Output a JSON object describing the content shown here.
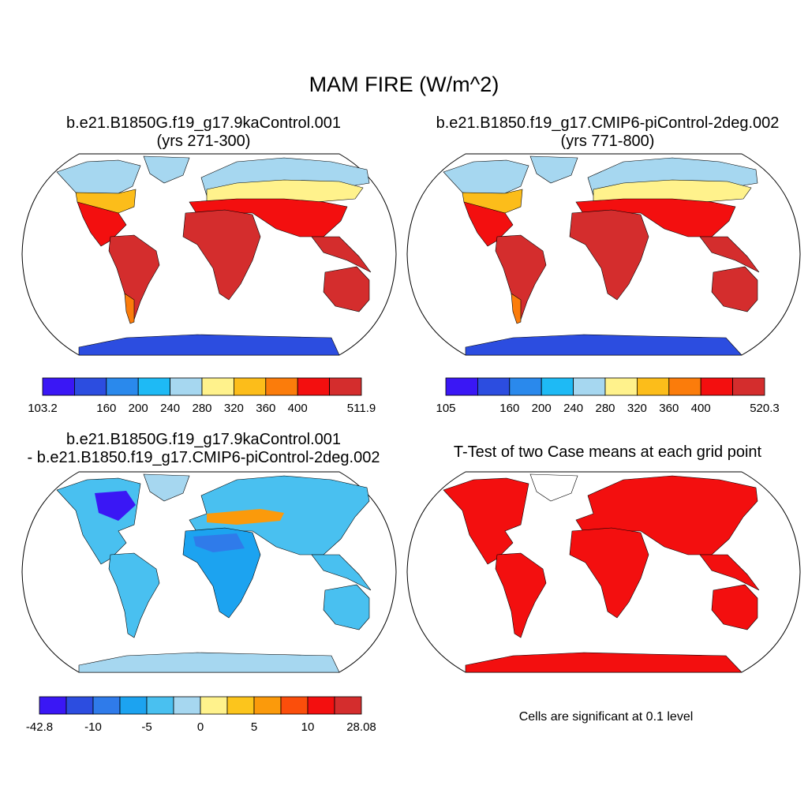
{
  "figure": {
    "title": "MAM FIRE (W/m^2)",
    "note": "Cells are significant at 0.1 level"
  },
  "panels": [
    {
      "id": "case1",
      "title_line1": "b.e21.B1850G.f19_g17.9kaControl.001",
      "title_line2": "(yrs 271-300)",
      "colorbar": {
        "colors": [
          "#3a17f5",
          "#2c4de0",
          "#2a89ec",
          "#1ebaf5",
          "#a6d7f0",
          "#fff28c",
          "#fcbd1a",
          "#fb7c0b",
          "#f30f0f",
          "#d42d2d"
        ],
        "tick_labels": [
          "103.2",
          "160",
          "200",
          "240",
          "280",
          "320",
          "360",
          "400",
          "511.9"
        ]
      }
    },
    {
      "id": "case2",
      "title_line1": "b.e21.B1850.f19_g17.CMIP6-piControl-2deg.002",
      "title_line2": "(yrs 771-800)",
      "colorbar": {
        "colors": [
          "#3a17f5",
          "#2c4de0",
          "#2a89ec",
          "#1ebaf5",
          "#a6d7f0",
          "#fff28c",
          "#fcbd1a",
          "#fb7c0b",
          "#f30f0f",
          "#d42d2d"
        ],
        "tick_labels": [
          "105",
          "160",
          "200",
          "240",
          "280",
          "320",
          "360",
          "400",
          "520.3"
        ]
      }
    },
    {
      "id": "diff",
      "title_line1": "b.e21.B1850G.f19_g17.9kaControl.001",
      "title_line2": "- b.e21.B1850.f19_g17.CMIP6-piControl-2deg.002",
      "colorbar": {
        "colors": [
          "#3a17f5",
          "#2c4de0",
          "#2f7bea",
          "#1ca3f0",
          "#49c0f0",
          "#a6d7f0",
          "#fff28c",
          "#fcc51c",
          "#fb9a0b",
          "#fb4e0b",
          "#f30f0f",
          "#d42d2d"
        ],
        "tick_labels": [
          "-42.8",
          "-10",
          "-5",
          "0",
          "5",
          "10",
          "28.08"
        ]
      }
    },
    {
      "id": "ttest",
      "title_line1": "T-Test of two Case means at each grid point",
      "title_line2": ""
    }
  ]
}
